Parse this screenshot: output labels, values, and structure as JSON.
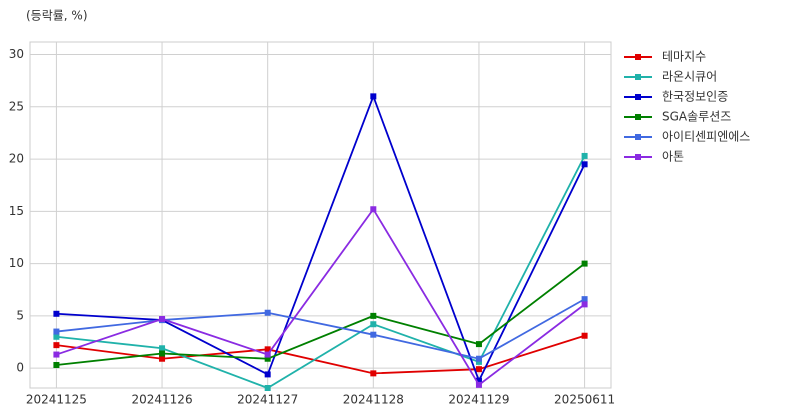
{
  "chart_data": {
    "type": "line",
    "annotation": "(등락률, %)",
    "categories": [
      "20241125",
      "20241126",
      "20241127",
      "20241128",
      "20241129",
      "20250611"
    ],
    "series": [
      {
        "name": "테마지수",
        "color": "#e00000",
        "values": [
          2.2,
          0.9,
          1.8,
          -0.5,
          -0.1,
          3.1
        ]
      },
      {
        "name": "라온시큐어",
        "color": "#20b2aa",
        "values": [
          3.0,
          1.9,
          -1.9,
          4.2,
          0.6,
          20.3
        ]
      },
      {
        "name": "한국정보인증",
        "color": "#0000cd",
        "values": [
          5.2,
          4.6,
          -0.6,
          26.0,
          -1.2,
          19.5
        ]
      },
      {
        "name": "SGA솔루션즈",
        "color": "#008000",
        "values": [
          0.3,
          1.4,
          0.9,
          5.0,
          2.3,
          10.0
        ]
      },
      {
        "name": "아이티센피엔에스",
        "color": "#4169e1",
        "values": [
          3.5,
          4.6,
          5.3,
          3.2,
          0.9,
          6.6
        ]
      },
      {
        "name": "아톤",
        "color": "#8a2be2",
        "values": [
          1.3,
          4.7,
          1.3,
          15.2,
          -1.6,
          6.1
        ]
      }
    ],
    "ylim": [
      -1.9,
      31.2
    ],
    "yticks": [
      0,
      5,
      10,
      15,
      20,
      25,
      30
    ],
    "grid": true,
    "legend": "right"
  }
}
